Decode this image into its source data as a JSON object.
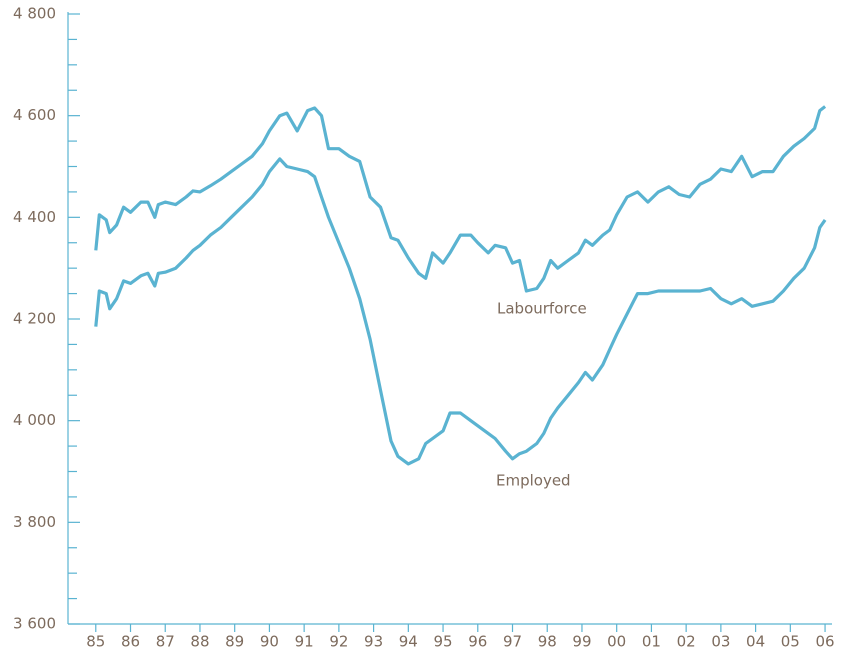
{
  "chart_data": {
    "type": "line",
    "x": [
      1985.0,
      1985.1,
      1985.3,
      1985.4,
      1985.6,
      1985.8,
      1986.0,
      1986.3,
      1986.5,
      1986.7,
      1986.8,
      1987.0,
      1987.3,
      1987.6,
      1987.8,
      1988.0,
      1988.3,
      1988.6,
      1988.9,
      1989.2,
      1989.5,
      1989.8,
      1990.0,
      1990.3,
      1990.5,
      1990.8,
      1991.1,
      1991.3,
      1991.5,
      1991.7,
      1992.0,
      1992.3,
      1992.6,
      1992.9,
      1993.2,
      1993.5,
      1993.7,
      1994.0,
      1994.3,
      1994.5,
      1994.7,
      1995.0,
      1995.2,
      1995.5,
      1995.8,
      1996.0,
      1996.3,
      1996.5,
      1996.8,
      1997.0,
      1997.2,
      1997.4,
      1997.7,
      1997.9,
      1998.1,
      1998.3,
      1998.6,
      1998.9,
      1999.1,
      1999.3,
      1999.6,
      1999.8,
      2000.0,
      2000.3,
      2000.6,
      2000.9,
      2001.2,
      2001.5,
      2001.8,
      2002.1,
      2002.4,
      2002.7,
      2003.0,
      2003.3,
      2003.6,
      2003.9,
      2004.2,
      2004.5,
      2004.8,
      2005.1,
      2005.4,
      2005.7,
      2005.85,
      2006.0
    ],
    "series": [
      {
        "name": "Labourforce",
        "color": "#5ab3d1",
        "values": [
          4335,
          4405,
          4395,
          4370,
          4385,
          4420,
          4410,
          4430,
          4430,
          4400,
          4425,
          4430,
          4425,
          4440,
          4452,
          4450,
          4462,
          4475,
          4490,
          4505,
          4520,
          4545,
          4570,
          4600,
          4605,
          4570,
          4610,
          4615,
          4600,
          4535,
          4535,
          4520,
          4510,
          4440,
          4420,
          4360,
          4355,
          4320,
          4290,
          4280,
          4330,
          4310,
          4330,
          4365,
          4365,
          4350,
          4330,
          4345,
          4340,
          4310,
          4315,
          4255,
          4260,
          4280,
          4315,
          4300,
          4315,
          4330,
          4355,
          4345,
          4365,
          4375,
          4405,
          4440,
          4450,
          4430,
          4450,
          4460,
          4445,
          4440,
          4465,
          4475,
          4495,
          4490,
          4520,
          4480,
          4490,
          4490,
          4520,
          4540,
          4555,
          4575,
          4610,
          4618
        ]
      },
      {
        "name": "Employed",
        "color": "#5ab3d1",
        "values": [
          4185,
          4255,
          4250,
          4220,
          4240,
          4275,
          4270,
          4285,
          4290,
          4265,
          4290,
          4292,
          4300,
          4320,
          4335,
          4345,
          4365,
          4380,
          4400,
          4420,
          4440,
          4465,
          4490,
          4515,
          4500,
          4495,
          4490,
          4480,
          4440,
          4400,
          4350,
          4300,
          4240,
          4160,
          4060,
          3960,
          3930,
          3915,
          3925,
          3955,
          3965,
          3980,
          4015,
          4015,
          4000,
          3990,
          3975,
          3965,
          3940,
          3925,
          3935,
          3940,
          3955,
          3975,
          4005,
          4025,
          4050,
          4075,
          4095,
          4080,
          4110,
          4140,
          4170,
          4210,
          4250,
          4250,
          4255,
          4255,
          4255,
          4255,
          4255,
          4260,
          4240,
          4230,
          4240,
          4225,
          4230,
          4235,
          4255,
          4280,
          4300,
          4340,
          4380,
          4395
        ]
      }
    ],
    "xlim": [
      1984.2,
      2006.2
    ],
    "xticks": [
      {
        "value": 1985,
        "label": "85"
      },
      {
        "value": 1986,
        "label": "86"
      },
      {
        "value": 1987,
        "label": "87"
      },
      {
        "value": 1988,
        "label": "88"
      },
      {
        "value": 1989,
        "label": "89"
      },
      {
        "value": 1990,
        "label": "90"
      },
      {
        "value": 1991,
        "label": "91"
      },
      {
        "value": 1992,
        "label": "92"
      },
      {
        "value": 1993,
        "label": "93"
      },
      {
        "value": 1994,
        "label": "94"
      },
      {
        "value": 1995,
        "label": "95"
      },
      {
        "value": 1996,
        "label": "96"
      },
      {
        "value": 1997,
        "label": "97"
      },
      {
        "value": 1998,
        "label": "98"
      },
      {
        "value": 1999,
        "label": "99"
      },
      {
        "value": 2000,
        "label": "00"
      },
      {
        "value": 2001,
        "label": "01"
      },
      {
        "value": 2002,
        "label": "02"
      },
      {
        "value": 2003,
        "label": "03"
      },
      {
        "value": 2004,
        "label": "04"
      },
      {
        "value": 2005,
        "label": "05"
      },
      {
        "value": 2006,
        "label": "06"
      }
    ],
    "ylim": [
      3600,
      4800
    ],
    "yticks": [
      {
        "value": 3600,
        "label": "3 600"
      },
      {
        "value": 3800,
        "label": "3 800"
      },
      {
        "value": 4000,
        "label": "4 000"
      },
      {
        "value": 4200,
        "label": "4 200"
      },
      {
        "value": 4400,
        "label": "4 400"
      },
      {
        "value": 4600,
        "label": "4 600"
      },
      {
        "value": 4800,
        "label": "4 800"
      }
    ],
    "yminorticks": [
      3650,
      3700,
      3750,
      3850,
      3900,
      3950,
      4050,
      4100,
      4150,
      4250,
      4300,
      4350,
      4450,
      4500,
      4550,
      4650,
      4700,
      4750
    ],
    "grid": false
  }
}
